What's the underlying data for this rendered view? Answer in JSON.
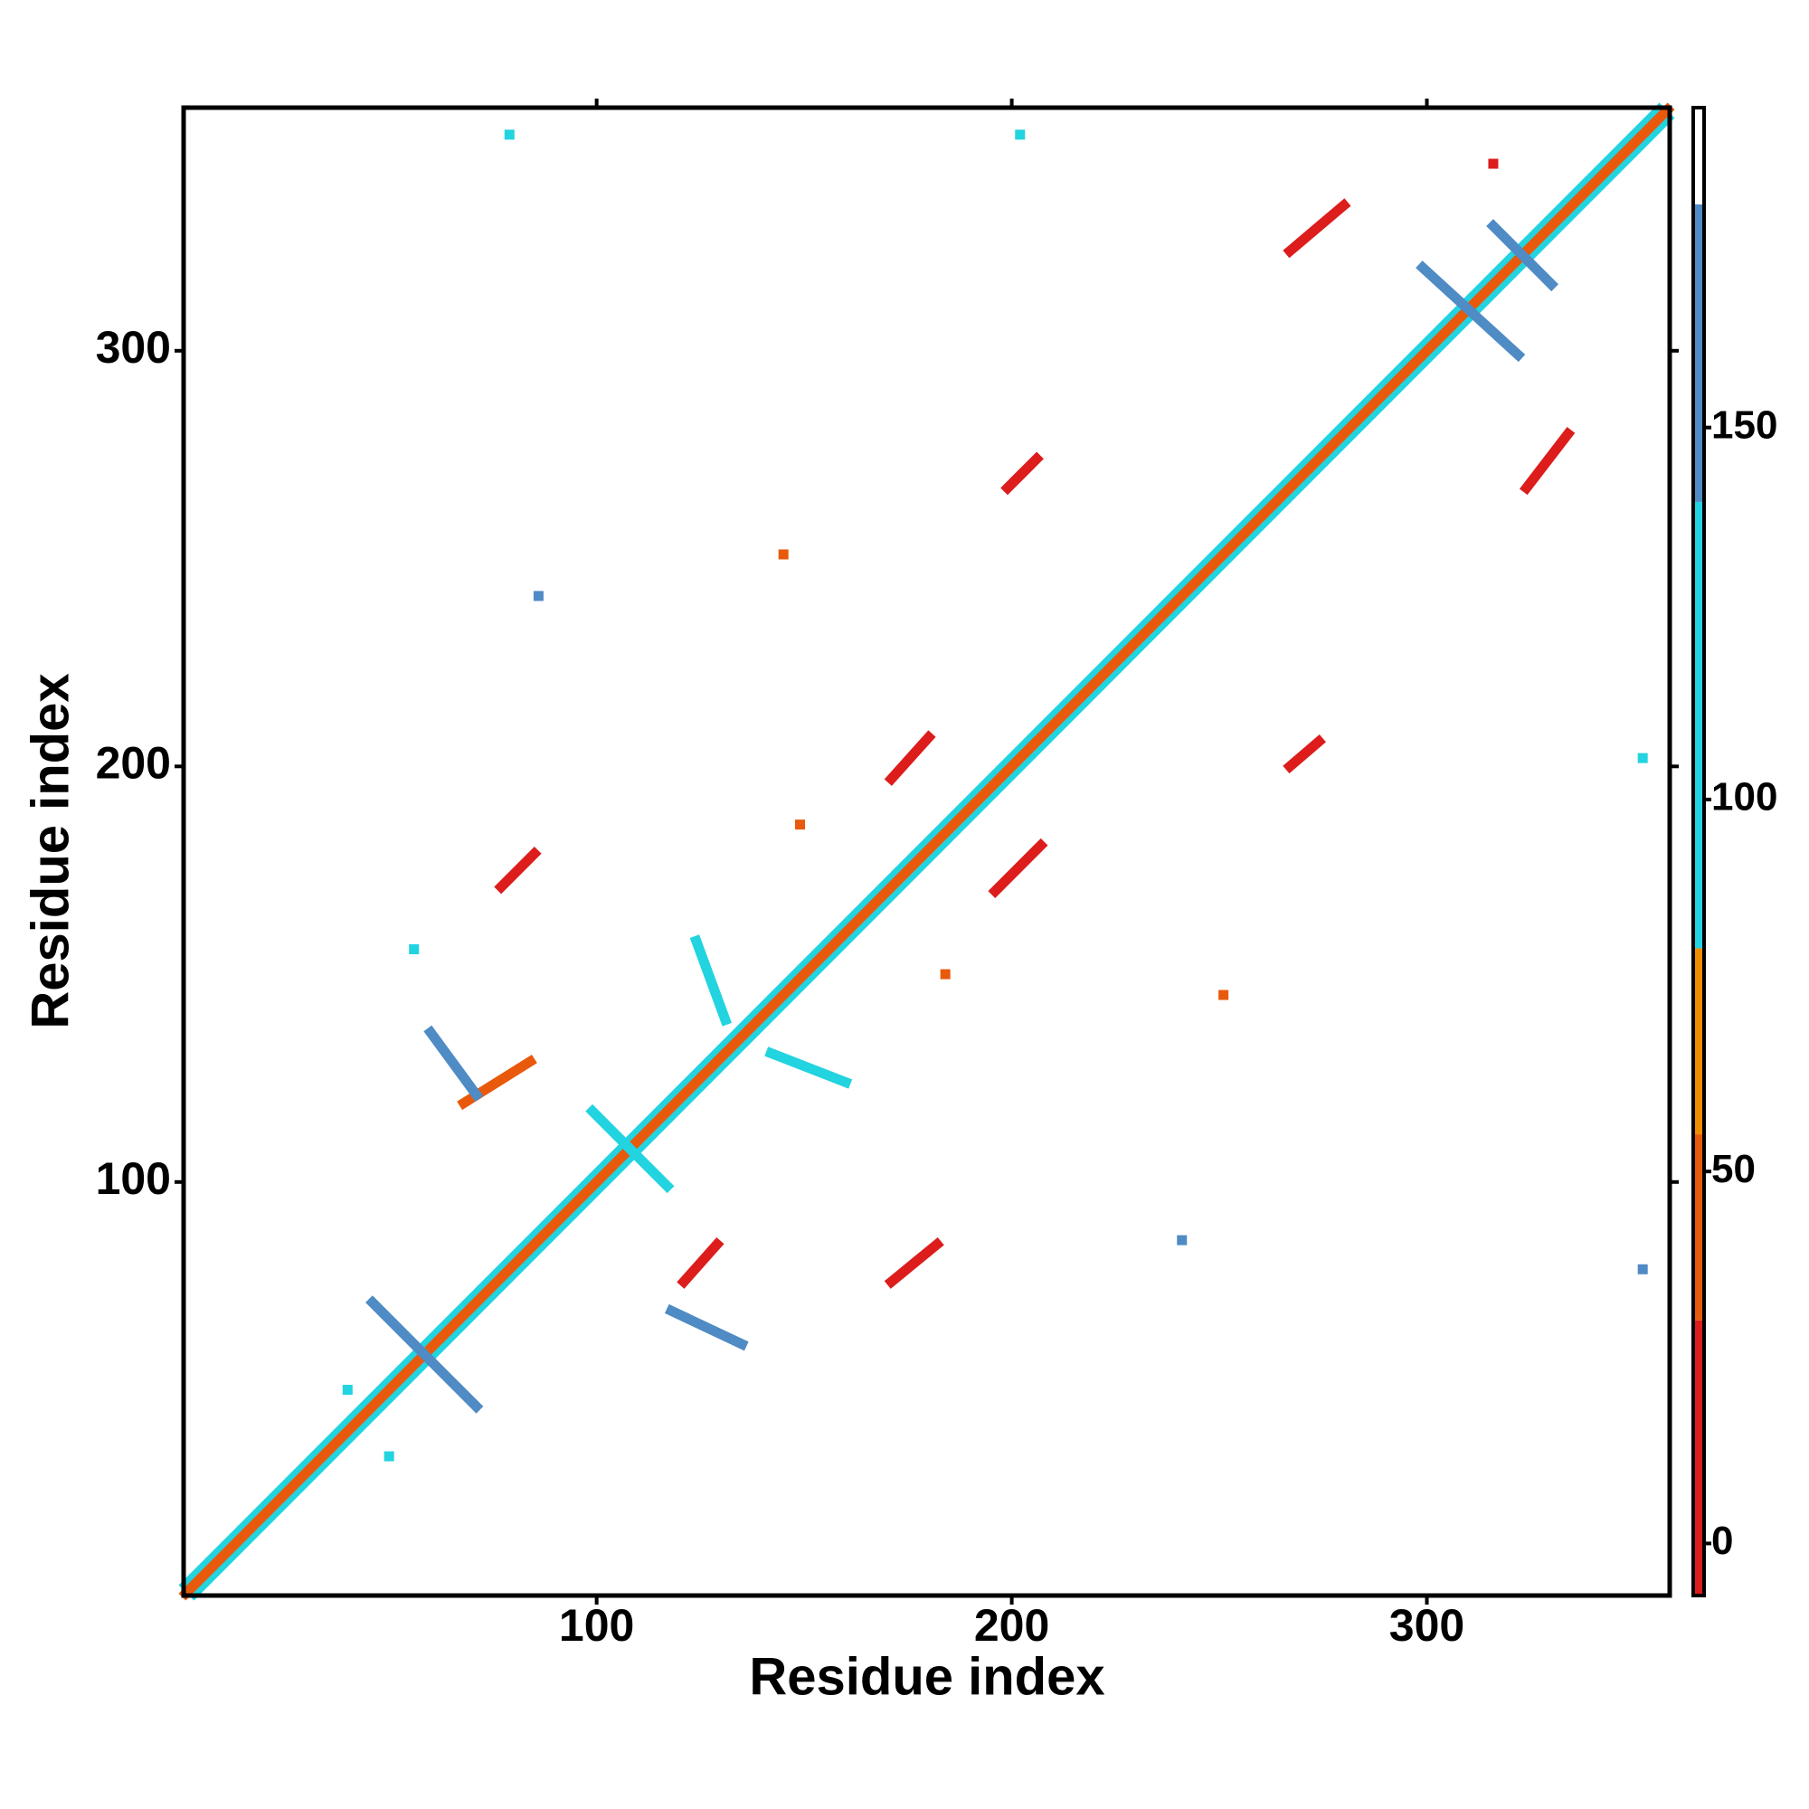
{
  "chart_data": {
    "type": "heatmap",
    "xlabel": "Residue index",
    "ylabel": "Residue index",
    "xlim": [
      0.5,
      358.5
    ],
    "ylim": [
      0.5,
      358.5
    ],
    "xticks": [
      100,
      200,
      300
    ],
    "yticks": [
      100,
      200,
      300
    ],
    "contacts": [
      {
        "x": [
          1,
          356
        ],
        "y": [
          3,
          358
        ],
        "value": 110
      },
      {
        "x": [
          3,
          358
        ],
        "y": [
          1,
          356
        ],
        "value": 110
      },
      {
        "x": [
          1,
          358
        ],
        "y": [
          1,
          358
        ],
        "value": 40
      },
      {
        "x": [
          46,
          71
        ],
        "y": [
          71,
          46
        ],
        "value": 160
      },
      {
        "x": [
          99,
          117
        ],
        "y": [
          117,
          99
        ],
        "value": 110
      },
      {
        "x": [
          299,
          322
        ],
        "y": [
          320,
          299
        ],
        "value": 160
      },
      {
        "x": [
          316,
          330
        ],
        "y": [
          330,
          316
        ],
        "value": 160
      },
      {
        "x": [
          267,
          280
        ],
        "y": [
          324,
          335
        ],
        "value": 10
      },
      {
        "x": [
          324,
          334
        ],
        "y": [
          267,
          280
        ],
        "value": 10
      },
      {
        "x": [
          171,
          180
        ],
        "y": [
          197,
          207
        ],
        "value": 10
      },
      {
        "x": [
          267,
          274
        ],
        "y": [
          200,
          206
        ],
        "value": 10
      },
      {
        "x": [
          199,
          206
        ],
        "y": [
          267,
          274
        ],
        "value": 10
      },
      {
        "x": [
          196,
          207
        ],
        "y": [
          170,
          181
        ],
        "value": 10
      },
      {
        "x": [
          77,
          85
        ],
        "y": [
          171,
          179
        ],
        "value": 10
      },
      {
        "x": [
          171,
          182
        ],
        "y": [
          76,
          85
        ],
        "value": 10
      },
      {
        "x": [
          121,
          129
        ],
        "y": [
          76,
          85
        ],
        "value": 10
      },
      {
        "x": [
          68,
          84
        ],
        "y": [
          119,
          129
        ],
        "value": 40
      },
      {
        "x": [
          60,
          71
        ],
        "y": [
          136,
          121
        ],
        "value": 160
      },
      {
        "x": [
          118,
          135
        ],
        "y": [
          69,
          61
        ],
        "value": 160
      },
      {
        "x": [
          124,
          131
        ],
        "y": [
          158,
          139
        ],
        "value": 110
      },
      {
        "x": [
          142,
          160
        ],
        "y": [
          131,
          124
        ],
        "value": 110
      },
      {
        "x": [
          79,
          79
        ],
        "y": [
          352,
          352
        ],
        "value": 110
      },
      {
        "x": [
          202,
          202
        ],
        "y": [
          352,
          352
        ],
        "value": 110
      },
      {
        "x": [
          352,
          352
        ],
        "y": [
          79,
          79
        ],
        "value": 160
      },
      {
        "x": [
          241,
          241
        ],
        "y": [
          86,
          86
        ],
        "value": 160
      },
      {
        "x": [
          251,
          251
        ],
        "y": [
          145,
          145
        ],
        "value": 40
      },
      {
        "x": [
          145,
          145
        ],
        "y": [
          251,
          251
        ],
        "value": 40
      },
      {
        "x": [
          86,
          86
        ],
        "y": [
          241,
          241
        ],
        "value": 160
      },
      {
        "x": [
          352,
          352
        ],
        "y": [
          202,
          202
        ],
        "value": 110
      },
      {
        "x": [
          316,
          316
        ],
        "y": [
          345,
          345
        ],
        "value": 10
      },
      {
        "x": [
          56,
          56
        ],
        "y": [
          156,
          156
        ],
        "value": 110
      },
      {
        "x": [
          40,
          40
        ],
        "y": [
          50,
          50
        ],
        "value": 110
      },
      {
        "x": [
          50,
          50
        ],
        "y": [
          34,
          34
        ],
        "value": 110
      },
      {
        "x": [
          149,
          149
        ],
        "y": [
          186,
          186
        ],
        "value": 40
      },
      {
        "x": [
          184,
          184
        ],
        "y": [
          150,
          150
        ],
        "value": 40
      }
    ],
    "colorbar": {
      "breaks": [
        -7,
        30,
        55,
        80,
        140,
        180,
        193
      ],
      "colors": [
        "#dd1c1c",
        "#e8590c",
        "#f08c00",
        "#22d3e0",
        "#4f8bc4",
        "#ffffff"
      ],
      "ylim": [
        -7,
        193
      ],
      "yticks": [
        0,
        50,
        100,
        150
      ]
    }
  }
}
